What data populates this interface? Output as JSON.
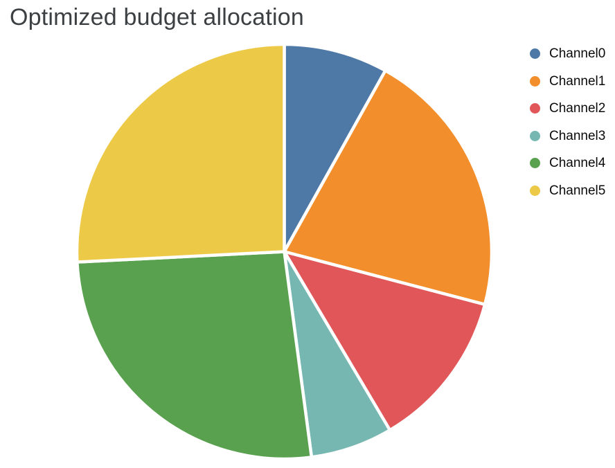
{
  "page": {
    "background_color": "#ffffff"
  },
  "title": {
    "text": "Optimized budget allocation",
    "color": "#3c4043"
  },
  "legend": {
    "position": "right",
    "marker_shape": "circle",
    "items": [
      {
        "label": "Channel0",
        "color": "#4e79a7"
      },
      {
        "label": "Channel1",
        "color": "#f28e2b"
      },
      {
        "label": "Channel2",
        "color": "#e15759"
      },
      {
        "label": "Channel3",
        "color": "#76b7b2"
      },
      {
        "label": "Channel4",
        "color": "#59a14f"
      },
      {
        "label": "Channel5",
        "color": "#edc948"
      }
    ]
  },
  "chart_data": {
    "type": "pie",
    "title": "Optimized budget allocation",
    "categories": [
      "Channel0",
      "Channel1",
      "Channel2",
      "Channel3",
      "Channel4",
      "Channel5"
    ],
    "values_percent": [
      8.1,
      21.0,
      12.4,
      6.4,
      26.3,
      25.8
    ],
    "colors": [
      "#4e79a7",
      "#f28e2b",
      "#e15759",
      "#76b7b2",
      "#59a14f",
      "#edc948"
    ],
    "start_angle": "12-oclock",
    "direction": "clockwise",
    "slice_separator_color": "#ffffff",
    "data_labels": "none",
    "legend_position": "right",
    "grid": "off"
  }
}
